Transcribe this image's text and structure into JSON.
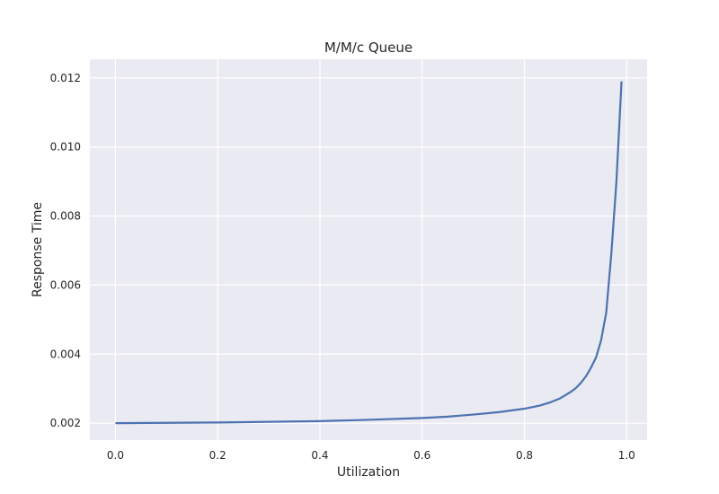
{
  "chart_data": {
    "type": "line",
    "title": "M/M/c Queue",
    "xlabel": "Utilization",
    "ylabel": "Response Time",
    "xlim": [
      -0.05,
      1.04
    ],
    "ylim": [
      0.00151,
      0.01254
    ],
    "xticks": [
      0.0,
      0.2,
      0.4,
      0.6,
      0.8,
      1.0
    ],
    "xtick_labels": [
      "0.0",
      "0.2",
      "0.4",
      "0.6",
      "0.8",
      "1.0"
    ],
    "yticks": [
      0.002,
      0.004,
      0.006,
      0.008,
      0.01,
      0.012
    ],
    "ytick_labels": [
      "0.002",
      "0.004",
      "0.006",
      "0.008",
      "0.010",
      "0.012"
    ],
    "grid": true,
    "colors": {
      "background": "#eaeaf2",
      "grid": "#ffffff",
      "line": "#4c72b0"
    },
    "series": [
      {
        "x": [
          0.0,
          0.1,
          0.2,
          0.3,
          0.4,
          0.5,
          0.6,
          0.65,
          0.7,
          0.75,
          0.8,
          0.83,
          0.85,
          0.87,
          0.89,
          0.9,
          0.91,
          0.92,
          0.93,
          0.94,
          0.95,
          0.96,
          0.97,
          0.98,
          0.99
        ],
        "y": [
          0.002,
          0.00201,
          0.00202,
          0.00204,
          0.00206,
          0.0021,
          0.00215,
          0.00219,
          0.00225,
          0.00232,
          0.00242,
          0.00251,
          0.0026,
          0.00272,
          0.0029,
          0.00301,
          0.00316,
          0.00335,
          0.0036,
          0.0039,
          0.0044,
          0.0052,
          0.0069,
          0.009,
          0.0119
        ]
      }
    ]
  }
}
